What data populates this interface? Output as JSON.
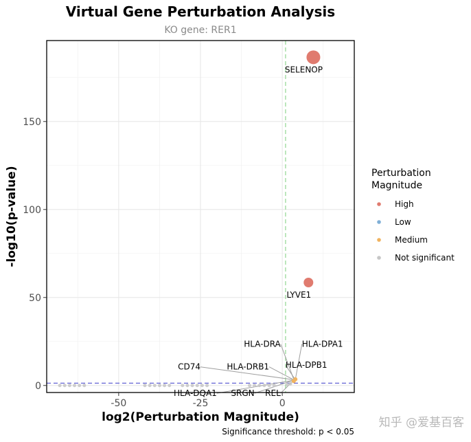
{
  "chart_data": {
    "type": "scatter",
    "title": "Virtual Gene Perturbation Analysis",
    "subtitle": "KO gene: RER1",
    "xlabel": "log2(Perturbation Magnitude)",
    "ylabel": "-log10(p-value)",
    "xlim": [
      -72,
      22
    ],
    "ylim": [
      -4,
      196
    ],
    "x_ticks": [
      -50,
      -25,
      0
    ],
    "x_tick_labels": [
      "-50",
      "-25",
      "0"
    ],
    "y_ticks": [
      0,
      50,
      100,
      150
    ],
    "y_tick_labels": [
      "0",
      "50",
      "100",
      "150"
    ],
    "grid": true,
    "significance_line_y": 1.3,
    "vertical_line_x": 1,
    "legend": {
      "title": "Perturbation\nMagnitude",
      "position": "right",
      "items": [
        {
          "label": "High",
          "color": "#e07b6f"
        },
        {
          "label": "Low",
          "color": "#7fafd6"
        },
        {
          "label": "Medium",
          "color": "#f0b35f"
        },
        {
          "label": "Not significant",
          "color": "#c6c6c6"
        }
      ]
    },
    "caption": "Significance threshold: p < 0.05",
    "series": [
      {
        "name": "High",
        "color": "#e07b6f",
        "points": [
          {
            "x": 9.5,
            "y": 186.5,
            "label": "SELENOP",
            "size": 10
          },
          {
            "x": 8,
            "y": 58.5,
            "label": "LYVE1",
            "size": 7
          }
        ]
      },
      {
        "name": "Medium",
        "color": "#f0b35f",
        "points": [
          {
            "x": 4,
            "y": 3.5,
            "size": 3
          },
          {
            "x": 3.5,
            "y": 2.5,
            "size": 3
          }
        ]
      },
      {
        "name": "Not significant",
        "color": "#c6c6c6",
        "points": [
          {
            "x": -68,
            "y": 0,
            "size": 2.5
          },
          {
            "x": -66.5,
            "y": 0,
            "size": 2.5
          },
          {
            "x": -65,
            "y": 0,
            "size": 2.5
          },
          {
            "x": -63.5,
            "y": 0,
            "size": 2.5
          },
          {
            "x": -62,
            "y": 0,
            "size": 2.5
          },
          {
            "x": -60.5,
            "y": 0,
            "size": 2.5
          },
          {
            "x": -42,
            "y": 0,
            "size": 2.5
          },
          {
            "x": -40.5,
            "y": 0,
            "size": 2.5
          },
          {
            "x": -39,
            "y": 0,
            "size": 2.5
          },
          {
            "x": -37.5,
            "y": 0,
            "size": 2.5
          },
          {
            "x": -36,
            "y": 0,
            "size": 2.5
          },
          {
            "x": -34.5,
            "y": 0,
            "size": 2.5
          },
          {
            "x": -30.5,
            "y": 0,
            "size": 2.5
          },
          {
            "x": -29,
            "y": 0,
            "size": 2.5
          },
          {
            "x": -27.5,
            "y": 0,
            "size": 2.5
          },
          {
            "x": -26,
            "y": 0,
            "size": 2.5
          },
          {
            "x": -24.5,
            "y": 0,
            "size": 2.5
          },
          {
            "x": -23,
            "y": 0,
            "size": 2.5
          },
          {
            "x": -10,
            "y": 0,
            "size": 2.5
          },
          {
            "x": -8.5,
            "y": 0,
            "size": 2.5
          },
          {
            "x": -7,
            "y": 0,
            "size": 2.5
          },
          {
            "x": -5.5,
            "y": 0,
            "size": 2.5
          },
          {
            "x": -4,
            "y": 0,
            "size": 2.5
          },
          {
            "x": -2.5,
            "y": 0,
            "size": 2.5
          },
          {
            "x": 1.5,
            "y": 0.5,
            "size": 2.5
          },
          {
            "x": 2.5,
            "y": 1,
            "size": 2.5
          }
        ]
      }
    ],
    "annotations": [
      {
        "label": "HLA-DRA",
        "x": -0.5,
        "y": 22,
        "px": 3.5,
        "py": 3.5,
        "anchor": "end"
      },
      {
        "label": "HLA-DPA1",
        "x": 6,
        "y": 22,
        "px": 4,
        "py": 3.5,
        "anchor": "start"
      },
      {
        "label": "CD74",
        "x": -25,
        "y": 9,
        "px": 3.8,
        "py": 3.2,
        "anchor": "end"
      },
      {
        "label": "HLA-DRB1",
        "x": -4,
        "y": 9,
        "px": 3.5,
        "py": 3.2,
        "anchor": "end"
      },
      {
        "label": "HLA-DPB1",
        "x": 1,
        "y": 10,
        "px": 4,
        "py": 3.2,
        "anchor": "start"
      },
      {
        "label": "HLA-DQA1",
        "x": -20,
        "y": -6,
        "px": 3.5,
        "py": 3,
        "anchor": "end"
      },
      {
        "label": "SRGN",
        "x": -8.5,
        "y": -6,
        "px": 3.5,
        "py": 3,
        "anchor": "end"
      },
      {
        "label": "REL",
        "x": -0.5,
        "y": -6,
        "px": 3.5,
        "py": 3,
        "anchor": "end"
      }
    ]
  },
  "watermark": "知乎 @爱基百客"
}
